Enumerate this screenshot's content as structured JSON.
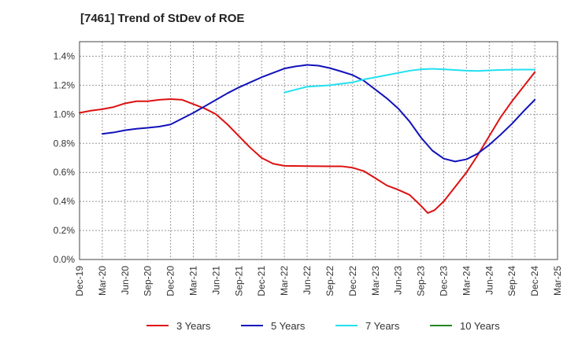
{
  "chart_data": {
    "type": "line",
    "title": "[7461]  Trend of StDev of ROE",
    "xlabel": "",
    "ylabel": "",
    "x_ticks": [
      "Dec-19",
      "Mar-20",
      "Jun-20",
      "Sep-20",
      "Dec-20",
      "Mar-21",
      "Jun-21",
      "Sep-21",
      "Dec-21",
      "Mar-22",
      "Jun-22",
      "Sep-22",
      "Dec-22",
      "Mar-23",
      "Jun-23",
      "Sep-23",
      "Dec-23",
      "Mar-24",
      "Jun-24",
      "Sep-24",
      "Dec-24",
      "Mar-25"
    ],
    "y_ticks": [
      "0.0%",
      "0.2%",
      "0.4%",
      "0.6%",
      "0.8%",
      "1.0%",
      "1.2%",
      "1.4%"
    ],
    "ylim": [
      0,
      1.5
    ],
    "grid": true,
    "legend_position": "bottom",
    "series": [
      {
        "name": "3 Years",
        "color": "#dd1111",
        "points": [
          [
            0,
            1.01
          ],
          [
            0.5,
            1.025
          ],
          [
            1,
            1.035
          ],
          [
            1.5,
            1.05
          ],
          [
            2,
            1.075
          ],
          [
            2.5,
            1.09
          ],
          [
            3,
            1.09
          ],
          [
            3.5,
            1.1
          ],
          [
            4,
            1.105
          ],
          [
            4.5,
            1.1
          ],
          [
            5,
            1.07
          ],
          [
            5.5,
            1.04
          ],
          [
            6,
            1.0
          ],
          [
            6.5,
            0.93
          ],
          [
            7,
            0.85
          ],
          [
            7.5,
            0.77
          ],
          [
            8,
            0.7
          ],
          [
            8.5,
            0.66
          ],
          [
            9,
            0.645
          ],
          [
            10,
            0.643
          ],
          [
            11,
            0.642
          ],
          [
            11.5,
            0.642
          ],
          [
            12,
            0.632
          ],
          [
            12.5,
            0.608
          ],
          [
            13,
            0.56
          ],
          [
            13.5,
            0.51
          ],
          [
            14,
            0.48
          ],
          [
            14.5,
            0.445
          ],
          [
            15,
            0.37
          ],
          [
            15.3,
            0.32
          ],
          [
            15.6,
            0.34
          ],
          [
            16,
            0.4
          ],
          [
            16.5,
            0.5
          ],
          [
            17,
            0.6
          ],
          [
            17.5,
            0.72
          ],
          [
            18,
            0.85
          ],
          [
            18.5,
            0.98
          ],
          [
            19,
            1.09
          ],
          [
            19.5,
            1.19
          ],
          [
            20,
            1.29
          ]
        ]
      },
      {
        "name": "5 Years",
        "color": "#1111bb",
        "points": [
          [
            1,
            0.865
          ],
          [
            1.5,
            0.875
          ],
          [
            2,
            0.89
          ],
          [
            2.5,
            0.9
          ],
          [
            3,
            0.907
          ],
          [
            3.5,
            0.915
          ],
          [
            4,
            0.93
          ],
          [
            4.5,
            0.97
          ],
          [
            5,
            1.01
          ],
          [
            5.5,
            1.055
          ],
          [
            6,
            1.1
          ],
          [
            6.5,
            1.145
          ],
          [
            7,
            1.185
          ],
          [
            7.5,
            1.22
          ],
          [
            8,
            1.255
          ],
          [
            8.5,
            1.285
          ],
          [
            9,
            1.315
          ],
          [
            9.5,
            1.33
          ],
          [
            10,
            1.34
          ],
          [
            10.5,
            1.335
          ],
          [
            11,
            1.318
          ],
          [
            11.5,
            1.295
          ],
          [
            12,
            1.27
          ],
          [
            12.5,
            1.23
          ],
          [
            13,
            1.17
          ],
          [
            13.5,
            1.11
          ],
          [
            14,
            1.04
          ],
          [
            14.5,
            0.95
          ],
          [
            15,
            0.84
          ],
          [
            15.5,
            0.75
          ],
          [
            16,
            0.695
          ],
          [
            16.5,
            0.675
          ],
          [
            17,
            0.69
          ],
          [
            17.5,
            0.73
          ],
          [
            18,
            0.79
          ],
          [
            18.5,
            0.86
          ],
          [
            19,
            0.935
          ],
          [
            19.5,
            1.02
          ],
          [
            20,
            1.1
          ]
        ]
      },
      {
        "name": "7 Years",
        "color": "#22e0f0",
        "points": [
          [
            9,
            1.15
          ],
          [
            9.5,
            1.17
          ],
          [
            10,
            1.19
          ],
          [
            10.5,
            1.195
          ],
          [
            11,
            1.2
          ],
          [
            11.5,
            1.21
          ],
          [
            12,
            1.22
          ],
          [
            12.5,
            1.24
          ],
          [
            13,
            1.255
          ],
          [
            13.5,
            1.27
          ],
          [
            14,
            1.285
          ],
          [
            14.5,
            1.3
          ],
          [
            15,
            1.31
          ],
          [
            15.5,
            1.313
          ],
          [
            16,
            1.31
          ],
          [
            16.5,
            1.305
          ],
          [
            17,
            1.3
          ],
          [
            17.5,
            1.298
          ],
          [
            18,
            1.302
          ],
          [
            18.5,
            1.305
          ],
          [
            19,
            1.307
          ],
          [
            19.5,
            1.308
          ],
          [
            20,
            1.308
          ]
        ]
      },
      {
        "name": "10 Years",
        "color": "#228822",
        "points": []
      }
    ]
  }
}
